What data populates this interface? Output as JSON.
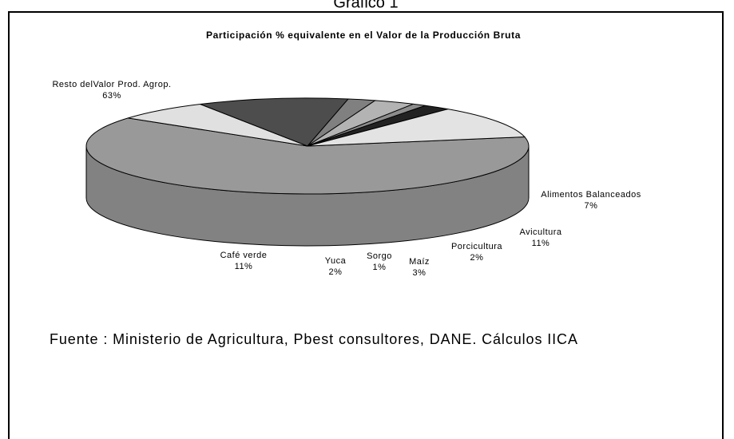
{
  "page_title": "Gráfico 1",
  "chart_data": {
    "type": "pie",
    "title": "Participación % equivalente en el Valor de la Producción Bruta",
    "categories": [
      "Resto delValor Prod. Agrop.",
      "Alimentos Balanceados",
      "Avicultura",
      "Porcicultura",
      "Maíz",
      "Sorgo",
      "Yuca",
      "Café verde"
    ],
    "values": [
      63,
      7,
      11,
      2,
      3,
      1,
      2,
      11
    ],
    "value_labels": [
      "63%",
      "7%",
      "11%",
      "2%",
      "3%",
      "1%",
      "2%",
      "11%"
    ],
    "colors": [
      "#999999",
      "#e0e0e0",
      "#4d4d4d",
      "#808080",
      "#b3b3b3",
      "#8c8c8c",
      "#222222",
      "#e3e3e3"
    ],
    "three_d": true
  },
  "source": "Fuente : Ministerio de Agricultura, Pbest consultores, DANE. Cálculos IICA"
}
